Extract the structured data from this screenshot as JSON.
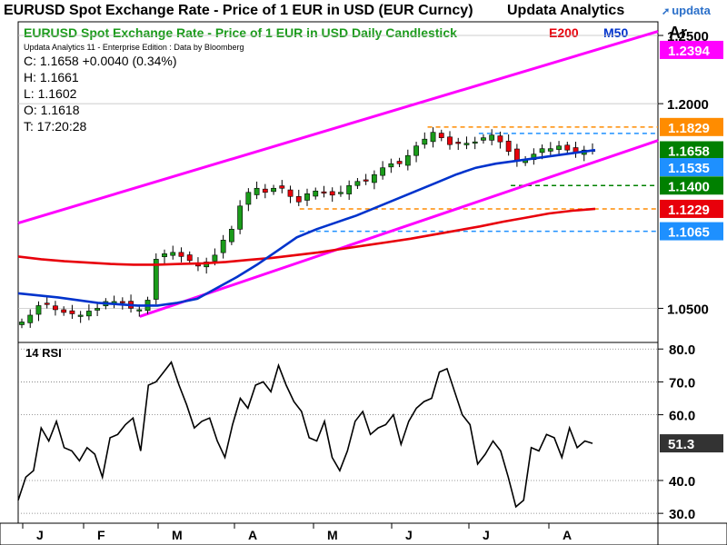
{
  "header": {
    "window_title": "EURUSD Spot Exchange Rate - Price of 1 EUR in USD (EUR Curncy)",
    "brand": "Updata Analytics",
    "logo": "updata",
    "logo_icon": "updata-arrow-icon",
    "corner_label": "Ar"
  },
  "chart_data": [
    {
      "type": "candlestick",
      "title": "EURUSD Spot Exchange Rate - Price of 1 EUR in USD Daily Candlestick",
      "subtitle": "Updata Analytics 11 - Enterprise Edition : Data by Bloomberg",
      "legend": [
        {
          "label": "E200",
          "color": "#e8000b"
        },
        {
          "label": "M50",
          "color": "#0033cc"
        }
      ],
      "info": {
        "close": "C: 1.1658 +0.0040 (0.34%)",
        "high": "H: 1.1661",
        "low": "L: 1.1602",
        "open": "O: 1.1618",
        "time": "T: 17:20:28"
      },
      "x_ticks": [
        "J",
        "F",
        "M",
        "A",
        "M",
        "J",
        "J",
        "A"
      ],
      "y_ticks": [
        "1.2500",
        "1.2000",
        "1.0500"
      ],
      "ylim": [
        1.025,
        1.26
      ],
      "price_labels": [
        {
          "value": 1.2394,
          "text": "1.2394",
          "color": "#ff00ff"
        },
        {
          "value": 1.1829,
          "text": "1.1829",
          "color": "#ff8c00"
        },
        {
          "value": 1.1658,
          "text": "1.1658",
          "color": "#008000"
        },
        {
          "value": 1.1535,
          "text": "1.1535",
          "color": "#1e90ff"
        },
        {
          "value": 1.14,
          "text": "1.1400",
          "color": "#008000"
        },
        {
          "value": 1.1229,
          "text": "1.1229",
          "color": "#e8000b"
        },
        {
          "value": 1.1065,
          "text": "1.1065",
          "color": "#1e90ff"
        }
      ],
      "levels": [
        {
          "value": 1.1829,
          "color": "#ff8c00",
          "x_start": 0.64
        },
        {
          "value": 1.1782,
          "color": "#1e90ff",
          "x_start": 0.72
        },
        {
          "value": 1.14,
          "color": "#008000",
          "x_start": 0.77
        },
        {
          "value": 1.1229,
          "color": "#ff8c00",
          "x_start": 0.44
        },
        {
          "value": 1.1065,
          "color": "#1e90ff",
          "x_start": 0.44
        }
      ],
      "trend_channel": {
        "upper": [
          [
            0.0,
            1.1125
          ],
          [
            1.0,
            1.253
          ]
        ],
        "lower": [
          [
            0.19,
            1.044
          ],
          [
            1.0,
            1.173
          ]
        ],
        "color": "#ff00ff"
      },
      "closes": [
        1.04,
        1.045,
        1.052,
        1.053,
        1.049,
        1.047,
        1.046,
        1.045,
        1.048,
        1.05,
        1.055,
        1.055,
        1.054,
        1.05,
        1.049,
        1.056,
        1.086,
        1.09,
        1.091,
        1.088,
        1.085,
        1.081,
        1.084,
        1.089,
        1.1,
        1.108,
        1.125,
        1.135,
        1.138,
        1.135,
        1.138,
        1.138,
        1.132,
        1.128,
        1.134,
        1.136,
        1.135,
        1.133,
        1.135,
        1.14,
        1.143,
        1.144,
        1.148,
        1.153,
        1.156,
        1.156,
        1.162,
        1.169,
        1.174,
        1.179,
        1.175,
        1.17,
        1.171,
        1.171,
        1.172,
        1.175,
        1.177,
        1.172,
        1.165,
        1.158,
        1.159,
        1.163,
        1.167,
        1.167,
        1.169,
        1.166,
        1.164,
        1.166,
        1.1658
      ],
      "e200": [
        1.088,
        1.086,
        1.0845,
        1.0835,
        1.0825,
        1.082,
        1.082,
        1.0825,
        1.083,
        1.084,
        1.0855,
        1.087,
        1.089,
        1.091,
        1.0935,
        1.096,
        1.0985,
        1.101,
        1.104,
        1.107,
        1.11,
        1.1135,
        1.1165,
        1.1195,
        1.1215,
        1.1229
      ],
      "m50": [
        1.061,
        1.0595,
        1.058,
        1.056,
        1.054,
        1.053,
        1.052,
        1.052,
        1.054,
        1.057,
        1.065,
        1.073,
        1.082,
        1.092,
        1.102,
        1.108,
        1.113,
        1.118,
        1.124,
        1.13,
        1.136,
        1.142,
        1.148,
        1.153,
        1.156,
        1.158,
        1.16,
        1.162,
        1.164,
        1.166
      ],
      "grid": true
    },
    {
      "type": "line",
      "title": "14 RSI",
      "y_ticks": [
        "80.0",
        "70.0",
        "60.0",
        "40.0",
        "30.0"
      ],
      "ylim": [
        27,
        82
      ],
      "last": {
        "value": 51.3,
        "text": "51.3"
      },
      "values": [
        34,
        41,
        43,
        56,
        52,
        58,
        50,
        49,
        46,
        50,
        48,
        41,
        53,
        54,
        57,
        59,
        49,
        69,
        70,
        73,
        76,
        69,
        63,
        56,
        58,
        59,
        52,
        47,
        57,
        65,
        62,
        69,
        70,
        67,
        75,
        69,
        64,
        61,
        53,
        52,
        58,
        47,
        43,
        49,
        58,
        61,
        54,
        56,
        57,
        60,
        51,
        58,
        62,
        64,
        65,
        73,
        74,
        67,
        60,
        57,
        45,
        48,
        52,
        49,
        41,
        32,
        34,
        50,
        49,
        54,
        53,
        47,
        56,
        50,
        52,
        51.3
      ],
      "grid": true
    }
  ]
}
